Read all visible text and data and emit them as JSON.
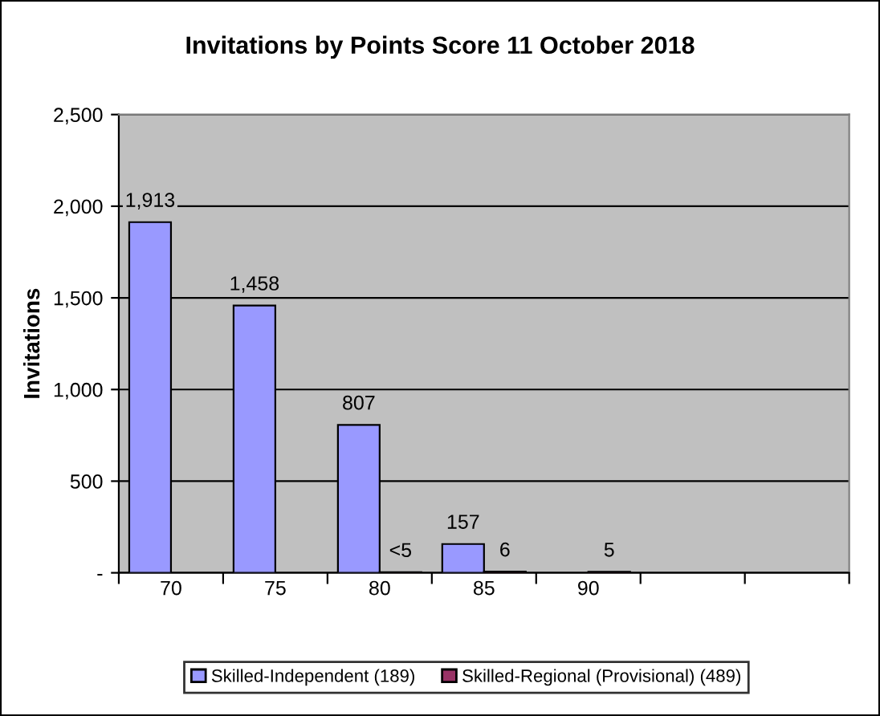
{
  "chart_data": {
    "type": "bar",
    "title": "Invitations by Points Score 11 October 2018",
    "ylabel": "Invitations",
    "categories": [
      "70",
      "75",
      "80",
      "85",
      "90",
      null,
      null
    ],
    "series": [
      {
        "name": "Skilled-Independent (189)",
        "color": "#9999ff",
        "values": [
          1913,
          1458,
          807,
          157,
          null,
          null,
          null
        ],
        "value_labels": [
          "1,913",
          "1,458",
          "807",
          "157",
          null,
          null,
          null
        ]
      },
      {
        "name": "Skilled-Regional (Provisional) (489)",
        "color": "#993366",
        "values": [
          null,
          null,
          3,
          6,
          5,
          null,
          null
        ],
        "value_labels": [
          null,
          null,
          "<5",
          "6",
          "5",
          null,
          null
        ]
      }
    ],
    "ylim": [
      0,
      2500
    ],
    "yticks": [
      {
        "value": 0,
        "label": "-"
      },
      500,
      {
        "value": 1000,
        "label": "1,000"
      },
      {
        "value": 1500,
        "label": "1,500"
      },
      {
        "value": 2000,
        "label": "2,000"
      },
      {
        "value": 2500,
        "label": "2,500"
      }
    ],
    "grid": "y",
    "legend": "bottom"
  }
}
